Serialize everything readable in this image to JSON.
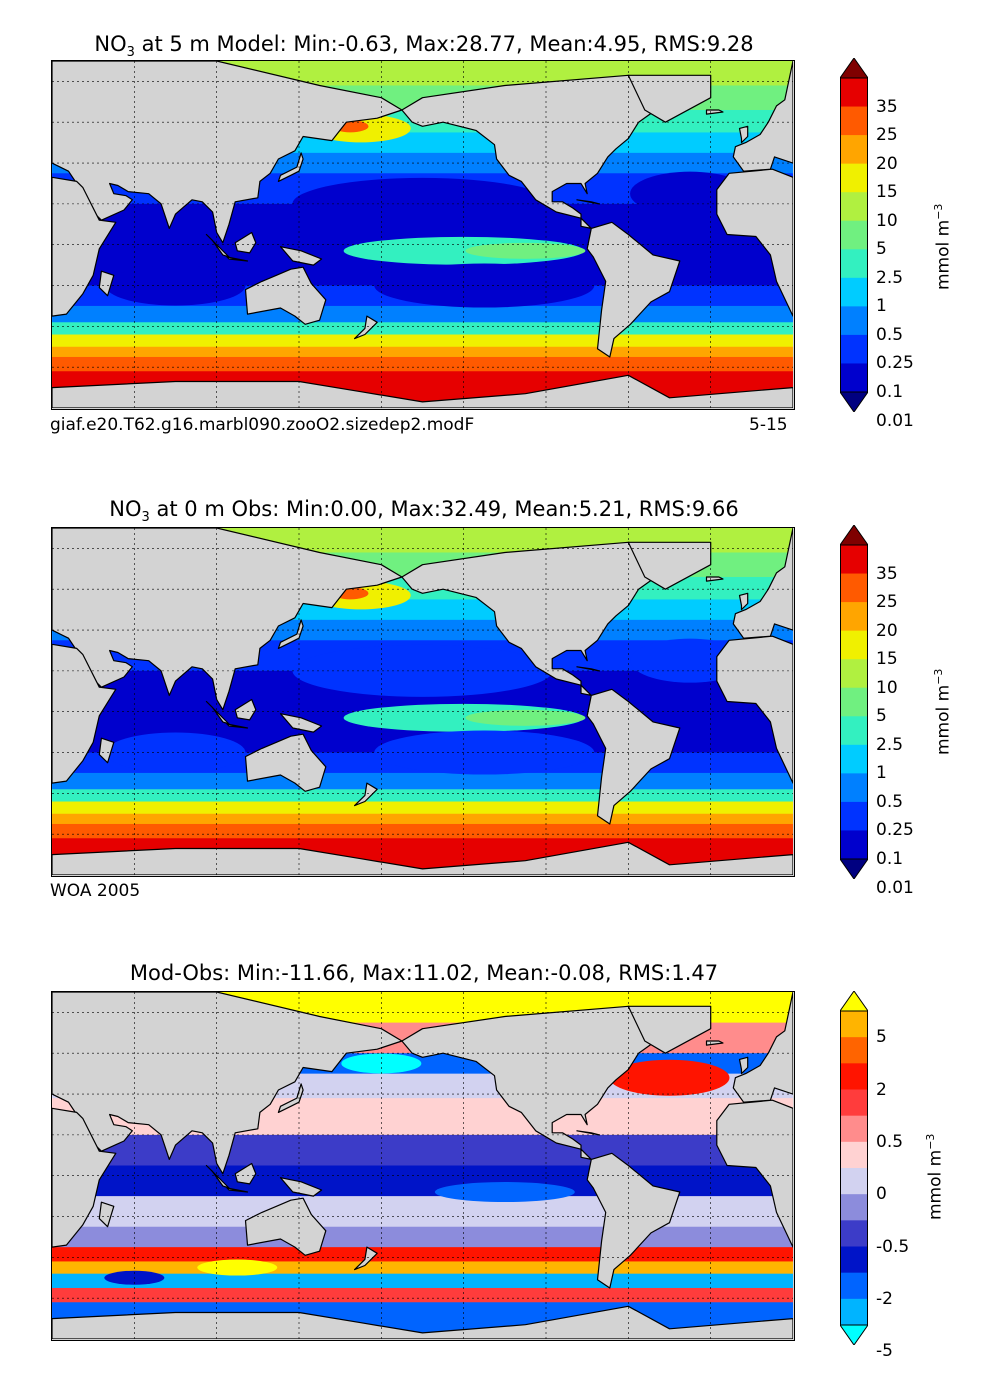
{
  "panels": [
    {
      "title_var": "NO",
      "title_sub": "3",
      "title_rest": " at 5 m Model: Min:-0.63, Max:28.77, Mean:4.95, RMS:9.28",
      "footer_left": "giaf.e20.T62.g16.marbl090.zooO2.sizedep2.modF",
      "footer_right": "5-15",
      "unit_label": "mmol m",
      "unit_exp": "−3",
      "colorbar_ticks": [
        "35",
        "25",
        "20",
        "15",
        "10",
        "5",
        "2.5",
        "1",
        "0.5",
        "0.25",
        "0.1",
        "0.01"
      ],
      "colors": [
        "#000080",
        "#0000cd",
        "#0033ff",
        "#0080ff",
        "#00ccff",
        "#33f0c0",
        "#70f080",
        "#b0f040",
        "#f0f000",
        "#ffa500",
        "#ff5a00",
        "#e60000",
        "#7f0000"
      ]
    },
    {
      "title_var": "NO",
      "title_sub": "3",
      "title_rest": " at 0 m Obs: Min:0.00, Max:32.49, Mean:5.21, RMS:9.66",
      "footer_left": "WOA 2005",
      "footer_right": "",
      "unit_label": "mmol m",
      "unit_exp": "−3",
      "colorbar_ticks": [
        "35",
        "25",
        "20",
        "15",
        "10",
        "5",
        "2.5",
        "1",
        "0.5",
        "0.25",
        "0.1",
        "0.01"
      ],
      "colors": [
        "#000080",
        "#0000cd",
        "#0033ff",
        "#0080ff",
        "#00ccff",
        "#33f0c0",
        "#70f080",
        "#b0f040",
        "#f0f000",
        "#ffa500",
        "#ff5a00",
        "#e60000",
        "#7f0000"
      ]
    },
    {
      "title_var": "",
      "title_sub": "",
      "title_rest": "Mod-Obs: Min:-11.66, Max:11.02, Mean:-0.08, RMS:1.47",
      "footer_left": "",
      "footer_right": "",
      "unit_label": "mmol m",
      "unit_exp": "−3",
      "colorbar_ticks": [
        "5",
        "2",
        "0.5",
        "0",
        "-0.5",
        "-2",
        "-5"
      ],
      "colors": [
        "#00ffff",
        "#00b4ff",
        "#0064ff",
        "#0014c8",
        "#3c3cc8",
        "#8c8cdc",
        "#d2d2f0",
        "#ffd2d2",
        "#ff8c8c",
        "#ff3c3c",
        "#ff1400",
        "#ff6400",
        "#ffb400",
        "#ffff00"
      ]
    }
  ]
}
